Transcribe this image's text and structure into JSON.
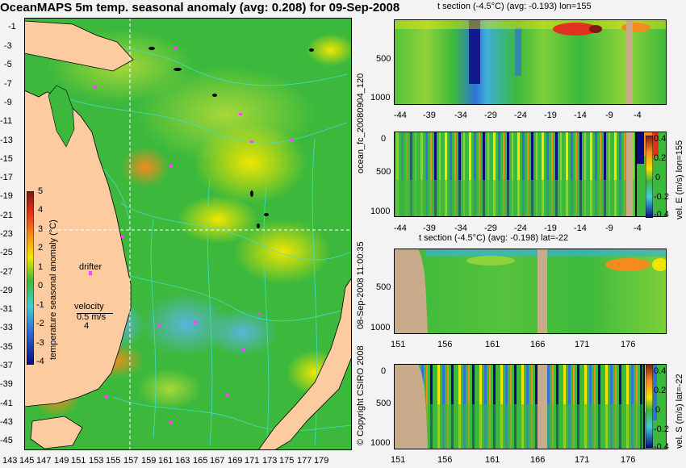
{
  "chart_data": [
    {
      "type": "heatmap",
      "title": "OceanMAPS 5m temp. seasonal anomaly (avg: 0.208) for 09-Sep-2008",
      "x_ticks": [
        "143",
        "145",
        "147",
        "149",
        "151",
        "153",
        "155",
        "157",
        "159",
        "161",
        "163",
        "165",
        "167",
        "169",
        "171",
        "173",
        "175",
        "177",
        "179"
      ],
      "y_ticks": [
        "-1",
        "-3",
        "-5",
        "-7",
        "-9",
        "-11",
        "-13",
        "-15",
        "-17",
        "-19",
        "-21",
        "-23",
        "-25",
        "-27",
        "-29",
        "-31",
        "-33",
        "-35",
        "-37",
        "-39",
        "-41",
        "-43",
        "-45"
      ],
      "colorbar": {
        "label": "temperature seasonal anomaly (°C)",
        "ticks": [
          "5",
          "4",
          "3",
          "2",
          "1",
          "0",
          "-1",
          "-2",
          "-3",
          "-4"
        ]
      },
      "annotations": {
        "drifter": "drifter",
        "velocity": "velocity",
        "velocity_speed": "0.5 m/s",
        "velocity_scale": "4"
      }
    },
    {
      "type": "heatmap",
      "title": "t section (-4.5°C) (avg: -0.193) lon=155",
      "x_ticks": [
        "-44",
        "-39",
        "-34",
        "-29",
        "-24",
        "-19",
        "-14",
        "-9",
        "-4"
      ],
      "y_ticks": [
        "0",
        "500",
        "1000"
      ]
    },
    {
      "type": "heatmap",
      "colorbar": {
        "label": "vel. E (m/s) lon=155",
        "ticks": [
          "0.4",
          "0.2",
          "0",
          "-0.2",
          "-0.4"
        ]
      },
      "x_ticks": [
        "-44",
        "-39",
        "-34",
        "-29",
        "-24",
        "-19",
        "-14",
        "-9",
        "-4"
      ],
      "y_ticks": [
        "0",
        "500",
        "1000"
      ]
    },
    {
      "type": "heatmap",
      "title": "t section (-4.5°C) (avg: -0.198) lat=-22",
      "x_ticks": [
        "151",
        "156",
        "161",
        "166",
        "171",
        "176"
      ],
      "y_ticks": [
        "0",
        "500",
        "1000"
      ]
    },
    {
      "type": "heatmap",
      "colorbar": {
        "label": "vel. S (m/s) lat=-22",
        "ticks": [
          "0.4",
          "0.2",
          "0",
          "-0.2",
          "-0.4"
        ]
      },
      "x_ticks": [
        "151",
        "156",
        "161",
        "166",
        "171",
        "176"
      ],
      "y_ticks": [
        "0",
        "500",
        "1000"
      ]
    }
  ],
  "side_labels": {
    "run_id": "ocean_fc_20080904_120",
    "timestamp": "08-Sep-2008 11:00:35",
    "copyright": "© Copyright CSIRO 2008"
  },
  "colors": {
    "ocean": "#3cb93c",
    "land": "#fccb9f",
    "sect_land": "#c8ab8a",
    "contour": "#40e0d8",
    "background": "#f3f3f3"
  }
}
